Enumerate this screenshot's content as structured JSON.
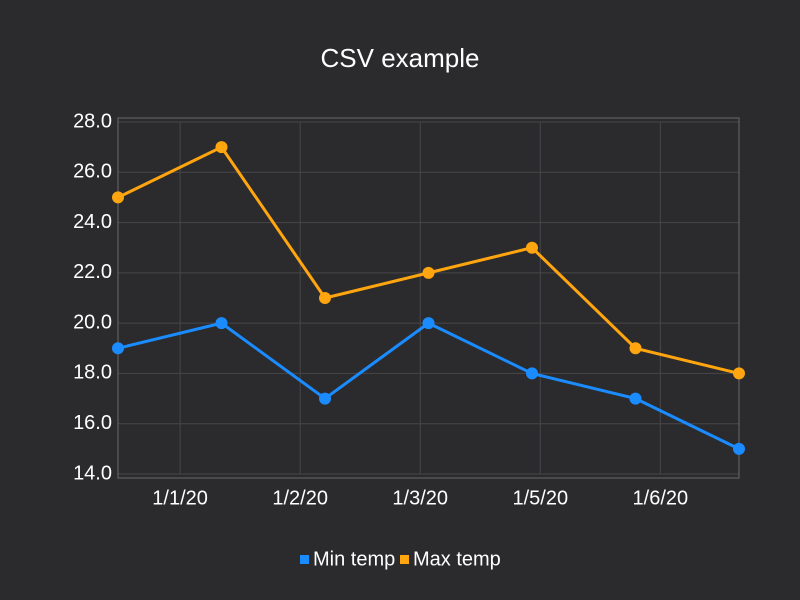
{
  "chart_data": {
    "type": "line",
    "title": "CSV example",
    "x": [
      0,
      1,
      2,
      3,
      4,
      5,
      6
    ],
    "xlim": [
      0,
      6
    ],
    "xticks": [
      {
        "value": 0.6,
        "label": "1/1/20"
      },
      {
        "value": 1.76,
        "label": "1/2/20"
      },
      {
        "value": 2.92,
        "label": "1/3/20"
      },
      {
        "value": 4.08,
        "label": "1/5/20"
      },
      {
        "value": 5.24,
        "label": "1/6/20"
      }
    ],
    "ylim": [
      14,
      28
    ],
    "yticks": [
      {
        "value": 14,
        "label": "14.0"
      },
      {
        "value": 16,
        "label": "16.0"
      },
      {
        "value": 18,
        "label": "18.0"
      },
      {
        "value": 20,
        "label": "20.0"
      },
      {
        "value": 22,
        "label": "22.0"
      },
      {
        "value": 24,
        "label": "24.0"
      },
      {
        "value": 26,
        "label": "26.0"
      },
      {
        "value": 28,
        "label": "28.0"
      }
    ],
    "grid": true,
    "legend": "bottom",
    "series": [
      {
        "name": "Min temp",
        "color": "#1a8cff",
        "values": [
          19,
          20,
          17,
          20,
          18,
          17,
          15
        ]
      },
      {
        "name": "Max temp",
        "color": "#ffa50f",
        "values": [
          25,
          27,
          21,
          22,
          23,
          19,
          18
        ]
      }
    ]
  }
}
